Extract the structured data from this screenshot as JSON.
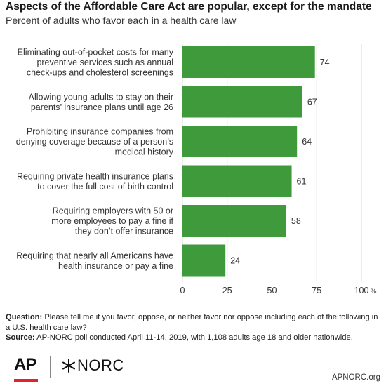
{
  "title": "Aspects of the Affordable Care Act are popular, except for the mandate",
  "subtitle": "Percent of adults who favor each in a health care law",
  "colors": {
    "bar": "#3e9a3a",
    "grid": "#d9d9d9",
    "text": "#333333"
  },
  "chart_data": {
    "type": "bar",
    "orientation": "horizontal",
    "categories": [
      [
        "Eliminating out-of-pocket costs for many",
        "preventive services such as annual",
        "check-ups and cholesterol screenings"
      ],
      [
        "Allowing young adults to stay on their",
        "parents’ insurance plans until age 26"
      ],
      [
        "Prohibiting insurance companies from",
        "denying coverage because of a person’s",
        "medical history"
      ],
      [
        "Requiring private health insurance plans",
        "to cover the full cost of birth control"
      ],
      [
        "Requiring employers with 50 or",
        "more employees to pay a fine if",
        "they don’t offer insurance"
      ],
      [
        "Requiring that nearly all Americans have",
        "health insurance or pay a fine"
      ]
    ],
    "values": [
      74,
      67,
      64,
      61,
      58,
      24
    ],
    "xlim": [
      0,
      100
    ],
    "xticks": [
      0,
      25,
      50,
      75,
      100
    ],
    "xtick_labels": [
      "0",
      "25",
      "50",
      "75",
      "100"
    ],
    "unit_label": "%",
    "grid": true,
    "data_labels": true
  },
  "notes": {
    "question_label": "Question:",
    "question_text": " Please tell me if you favor, oppose, or neither favor nor oppose including each of the following in a U.S. health care law?",
    "source_label": "Source:",
    "source_text": " AP-NORC poll conducted April 11-14, 2019, with 1,108 adults age 18 and older nationwide."
  },
  "logos": {
    "ap": "AP",
    "norc": "NORC"
  },
  "site": "APNORC.org"
}
